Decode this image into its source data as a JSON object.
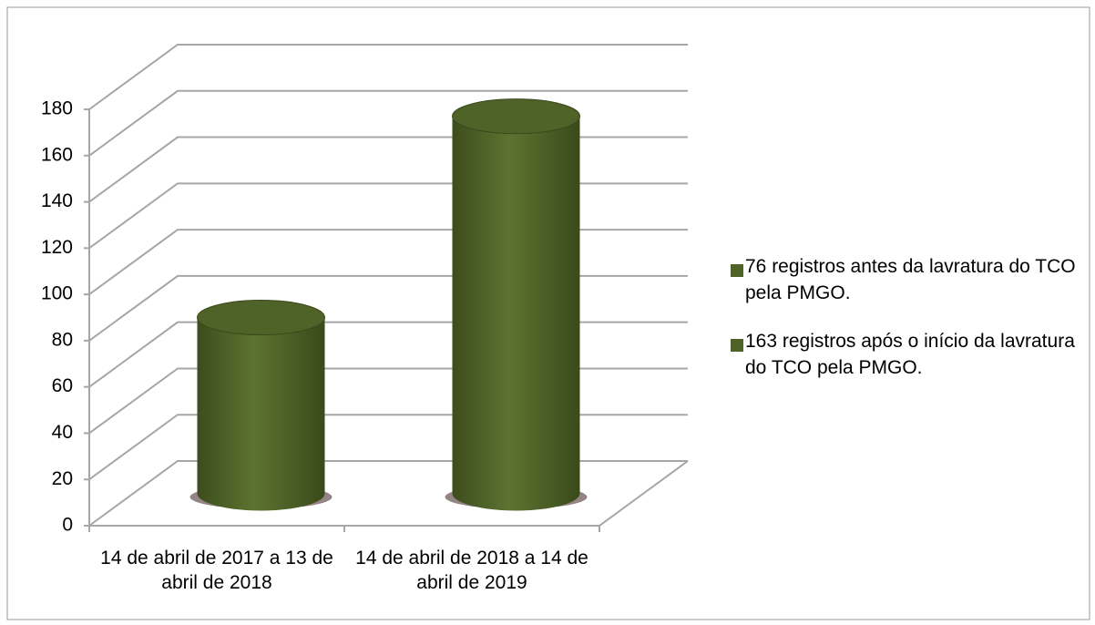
{
  "chart_data": {
    "type": "bar3d",
    "categories": [
      "14 de abril de 2017 a 13 de abril de 2018",
      "14 de abril de 2018 a 14 de abril de 2019"
    ],
    "series": [
      {
        "name": "76 registros antes da lavratura do TCO pela PMGO.",
        "color": "#4f6228",
        "values": [
          76,
          null
        ]
      },
      {
        "name": "163 registros após o início da lavratura do TCO pela PMGO.",
        "color": "#4f6228",
        "values": [
          null,
          163
        ]
      }
    ],
    "ylim": [
      0,
      180
    ],
    "yticks": [
      0,
      20,
      40,
      60,
      80,
      100,
      120,
      140,
      160,
      180
    ],
    "grid": true,
    "legend": "right"
  }
}
